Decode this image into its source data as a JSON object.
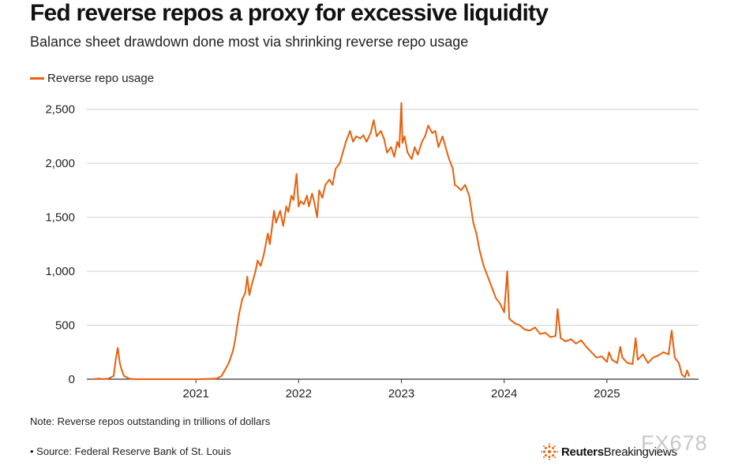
{
  "title": "Fed reverse repos a proxy for excessive liquidity",
  "subtitle": "Balance sheet drawdown done most via shrinking reverse repo usage",
  "note": "Note: Reverse repos outstanding in trillions of dollars",
  "source": "• Source: Federal Reserve Bank of St. Louis",
  "brand": {
    "name_bold": "Reuters",
    "name_rest": " Breakingviews"
  },
  "watermark": "FX678",
  "colors": {
    "line": "#e8600c",
    "grid": "#cfcfcf",
    "axis": "#333333"
  },
  "chart_data": {
    "type": "line",
    "legend_position": "top-left",
    "grid": true,
    "ylim": [
      0,
      2600
    ],
    "yticks": [
      0,
      500,
      1000,
      1500,
      2000,
      2500
    ],
    "ytick_labels": [
      "0",
      "500",
      "1,000",
      "1,500",
      "2,000",
      "2,500"
    ],
    "xlim": [
      2020.0,
      2025.8
    ],
    "xticks": [
      2021,
      2022,
      2023,
      2024,
      2025
    ],
    "xtick_labels": [
      "2021",
      "2022",
      "2023",
      "2024",
      "2025"
    ],
    "series": [
      {
        "name": "Reverse repo usage",
        "color": "#e8600c",
        "points": [
          [
            2020.0,
            0
          ],
          [
            2020.05,
            5
          ],
          [
            2020.1,
            2
          ],
          [
            2020.15,
            5
          ],
          [
            2020.2,
            30
          ],
          [
            2020.22,
            180
          ],
          [
            2020.24,
            290
          ],
          [
            2020.26,
            150
          ],
          [
            2020.28,
            80
          ],
          [
            2020.3,
            30
          ],
          [
            2020.35,
            5
          ],
          [
            2020.4,
            0
          ],
          [
            2020.6,
            0
          ],
          [
            2020.8,
            0
          ],
          [
            2021.0,
            0
          ],
          [
            2021.1,
            2
          ],
          [
            2021.2,
            5
          ],
          [
            2021.25,
            30
          ],
          [
            2021.28,
            80
          ],
          [
            2021.32,
            150
          ],
          [
            2021.36,
            260
          ],
          [
            2021.38,
            350
          ],
          [
            2021.4,
            480
          ],
          [
            2021.42,
            600
          ],
          [
            2021.45,
            740
          ],
          [
            2021.48,
            800
          ],
          [
            2021.5,
            950
          ],
          [
            2021.52,
            780
          ],
          [
            2021.55,
            900
          ],
          [
            2021.58,
            1000
          ],
          [
            2021.6,
            1100
          ],
          [
            2021.63,
            1050
          ],
          [
            2021.66,
            1150
          ],
          [
            2021.7,
            1350
          ],
          [
            2021.72,
            1250
          ],
          [
            2021.74,
            1400
          ],
          [
            2021.76,
            1560
          ],
          [
            2021.78,
            1450
          ],
          [
            2021.82,
            1560
          ],
          [
            2021.85,
            1420
          ],
          [
            2021.88,
            1600
          ],
          [
            2021.9,
            1550
          ],
          [
            2021.93,
            1700
          ],
          [
            2021.95,
            1660
          ],
          [
            2021.98,
            1900
          ],
          [
            2022.0,
            1600
          ],
          [
            2022.02,
            1650
          ],
          [
            2022.05,
            1620
          ],
          [
            2022.08,
            1700
          ],
          [
            2022.1,
            1600
          ],
          [
            2022.13,
            1720
          ],
          [
            2022.15,
            1650
          ],
          [
            2022.18,
            1500
          ],
          [
            2022.2,
            1750
          ],
          [
            2022.23,
            1680
          ],
          [
            2022.26,
            1800
          ],
          [
            2022.3,
            1850
          ],
          [
            2022.33,
            1800
          ],
          [
            2022.36,
            1950
          ],
          [
            2022.4,
            2000
          ],
          [
            2022.43,
            2100
          ],
          [
            2022.46,
            2200
          ],
          [
            2022.5,
            2300
          ],
          [
            2022.53,
            2200
          ],
          [
            2022.56,
            2250
          ],
          [
            2022.6,
            2230
          ],
          [
            2022.63,
            2260
          ],
          [
            2022.66,
            2200
          ],
          [
            2022.7,
            2280
          ],
          [
            2022.73,
            2400
          ],
          [
            2022.76,
            2250
          ],
          [
            2022.8,
            2300
          ],
          [
            2022.83,
            2230
          ],
          [
            2022.86,
            2100
          ],
          [
            2022.9,
            2150
          ],
          [
            2022.93,
            2060
          ],
          [
            2022.96,
            2200
          ],
          [
            2022.98,
            2150
          ],
          [
            2023.0,
            2560
          ],
          [
            2023.01,
            2190
          ],
          [
            2023.03,
            2250
          ],
          [
            2023.06,
            2100
          ],
          [
            2023.1,
            2040
          ],
          [
            2023.13,
            2150
          ],
          [
            2023.16,
            2080
          ],
          [
            2023.2,
            2200
          ],
          [
            2023.23,
            2250
          ],
          [
            2023.26,
            2350
          ],
          [
            2023.3,
            2280
          ],
          [
            2023.33,
            2300
          ],
          [
            2023.36,
            2150
          ],
          [
            2023.4,
            2250
          ],
          [
            2023.43,
            2150
          ],
          [
            2023.46,
            2050
          ],
          [
            2023.5,
            1950
          ],
          [
            2023.52,
            1800
          ],
          [
            2023.55,
            1780
          ],
          [
            2023.58,
            1750
          ],
          [
            2023.62,
            1800
          ],
          [
            2023.66,
            1700
          ],
          [
            2023.7,
            1450
          ],
          [
            2023.73,
            1350
          ],
          [
            2023.76,
            1200
          ],
          [
            2023.8,
            1050
          ],
          [
            2023.84,
            950
          ],
          [
            2023.88,
            850
          ],
          [
            2023.92,
            750
          ],
          [
            2023.96,
            700
          ],
          [
            2024.0,
            620
          ],
          [
            2024.03,
            1000
          ],
          [
            2024.05,
            560
          ],
          [
            2024.1,
            520
          ],
          [
            2024.15,
            500
          ],
          [
            2024.2,
            460
          ],
          [
            2024.25,
            450
          ],
          [
            2024.3,
            480
          ],
          [
            2024.35,
            420
          ],
          [
            2024.4,
            430
          ],
          [
            2024.45,
            390
          ],
          [
            2024.5,
            400
          ],
          [
            2024.52,
            650
          ],
          [
            2024.55,
            380
          ],
          [
            2024.6,
            350
          ],
          [
            2024.65,
            370
          ],
          [
            2024.7,
            330
          ],
          [
            2024.75,
            360
          ],
          [
            2024.8,
            300
          ],
          [
            2024.85,
            250
          ],
          [
            2024.9,
            200
          ],
          [
            2024.95,
            210
          ],
          [
            2025.0,
            160
          ],
          [
            2025.02,
            250
          ],
          [
            2025.05,
            180
          ],
          [
            2025.1,
            150
          ],
          [
            2025.13,
            300
          ],
          [
            2025.15,
            200
          ],
          [
            2025.2,
            150
          ],
          [
            2025.25,
            140
          ],
          [
            2025.28,
            380
          ],
          [
            2025.3,
            180
          ],
          [
            2025.35,
            230
          ],
          [
            2025.4,
            150
          ],
          [
            2025.45,
            200
          ],
          [
            2025.5,
            220
          ],
          [
            2025.55,
            250
          ],
          [
            2025.6,
            230
          ],
          [
            2025.63,
            450
          ],
          [
            2025.66,
            200
          ],
          [
            2025.7,
            150
          ],
          [
            2025.73,
            40
          ],
          [
            2025.76,
            20
          ],
          [
            2025.78,
            80
          ],
          [
            2025.8,
            30
          ]
        ]
      }
    ]
  }
}
